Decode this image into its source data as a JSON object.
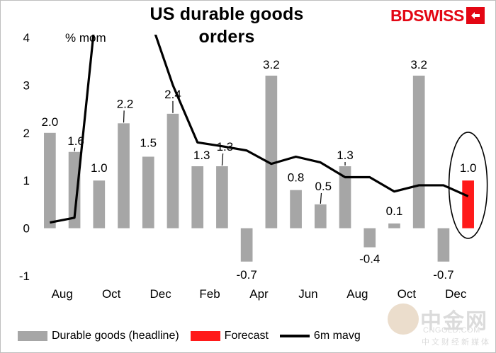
{
  "chart_data": {
    "type": "bar",
    "title": "US durable goods orders",
    "title_lines": [
      "US durable goods",
      "orders"
    ],
    "unit_label": "% mom",
    "ylim": [
      -1,
      4
    ],
    "yticks": [
      -1,
      0,
      1,
      2,
      3,
      4
    ],
    "x_labels": [
      "Aug",
      "Oct",
      "Dec",
      "Feb",
      "Apr",
      "Jun",
      "Aug",
      "Oct",
      "Dec"
    ],
    "grid": false,
    "legend_position": "bottom",
    "series": [
      {
        "name": "Durable goods (headline)",
        "kind": "bar",
        "color": "#a6a6a6",
        "values": [
          2.0,
          1.6,
          1.0,
          2.2,
          1.5,
          2.4,
          1.3,
          1.3,
          -0.7,
          3.2,
          0.8,
          0.5,
          1.3,
          -0.4,
          0.1,
          3.2,
          -0.7,
          null
        ]
      },
      {
        "name": "Forecast",
        "kind": "bar",
        "color": "#ff1a1a",
        "values": [
          null,
          null,
          null,
          null,
          null,
          null,
          null,
          null,
          null,
          null,
          null,
          null,
          null,
          null,
          null,
          null,
          null,
          1.0
        ]
      },
      {
        "name": "6m mavg",
        "kind": "line",
        "color": "#000000",
        "values": [
          0.12,
          0.22,
          5.2,
          4.9,
          4.5,
          3.0,
          1.8,
          1.72,
          1.63,
          1.35,
          1.5,
          1.38,
          1.07,
          1.07,
          0.77,
          0.9,
          0.9,
          0.67
        ]
      }
    ],
    "data_labels": [
      "2.0",
      "1.6",
      "1.0",
      "2.2",
      "1.5",
      "2.4",
      "1.3",
      "1.3",
      "-0.7",
      "3.2",
      "0.8",
      "0.5",
      "1.3",
      "-0.4",
      "0.1",
      "3.2",
      "-0.7",
      "1.0"
    ]
  },
  "brand": {
    "text": "BDSWISS"
  },
  "watermark": {
    "cn": "中金网",
    "url": "CNGOLD.COM",
    "sub": "中文财经新媒体"
  },
  "colors": {
    "headline_bar": "#a6a6a6",
    "forecast_bar": "#ff1a1a",
    "brand": "#e30613"
  }
}
